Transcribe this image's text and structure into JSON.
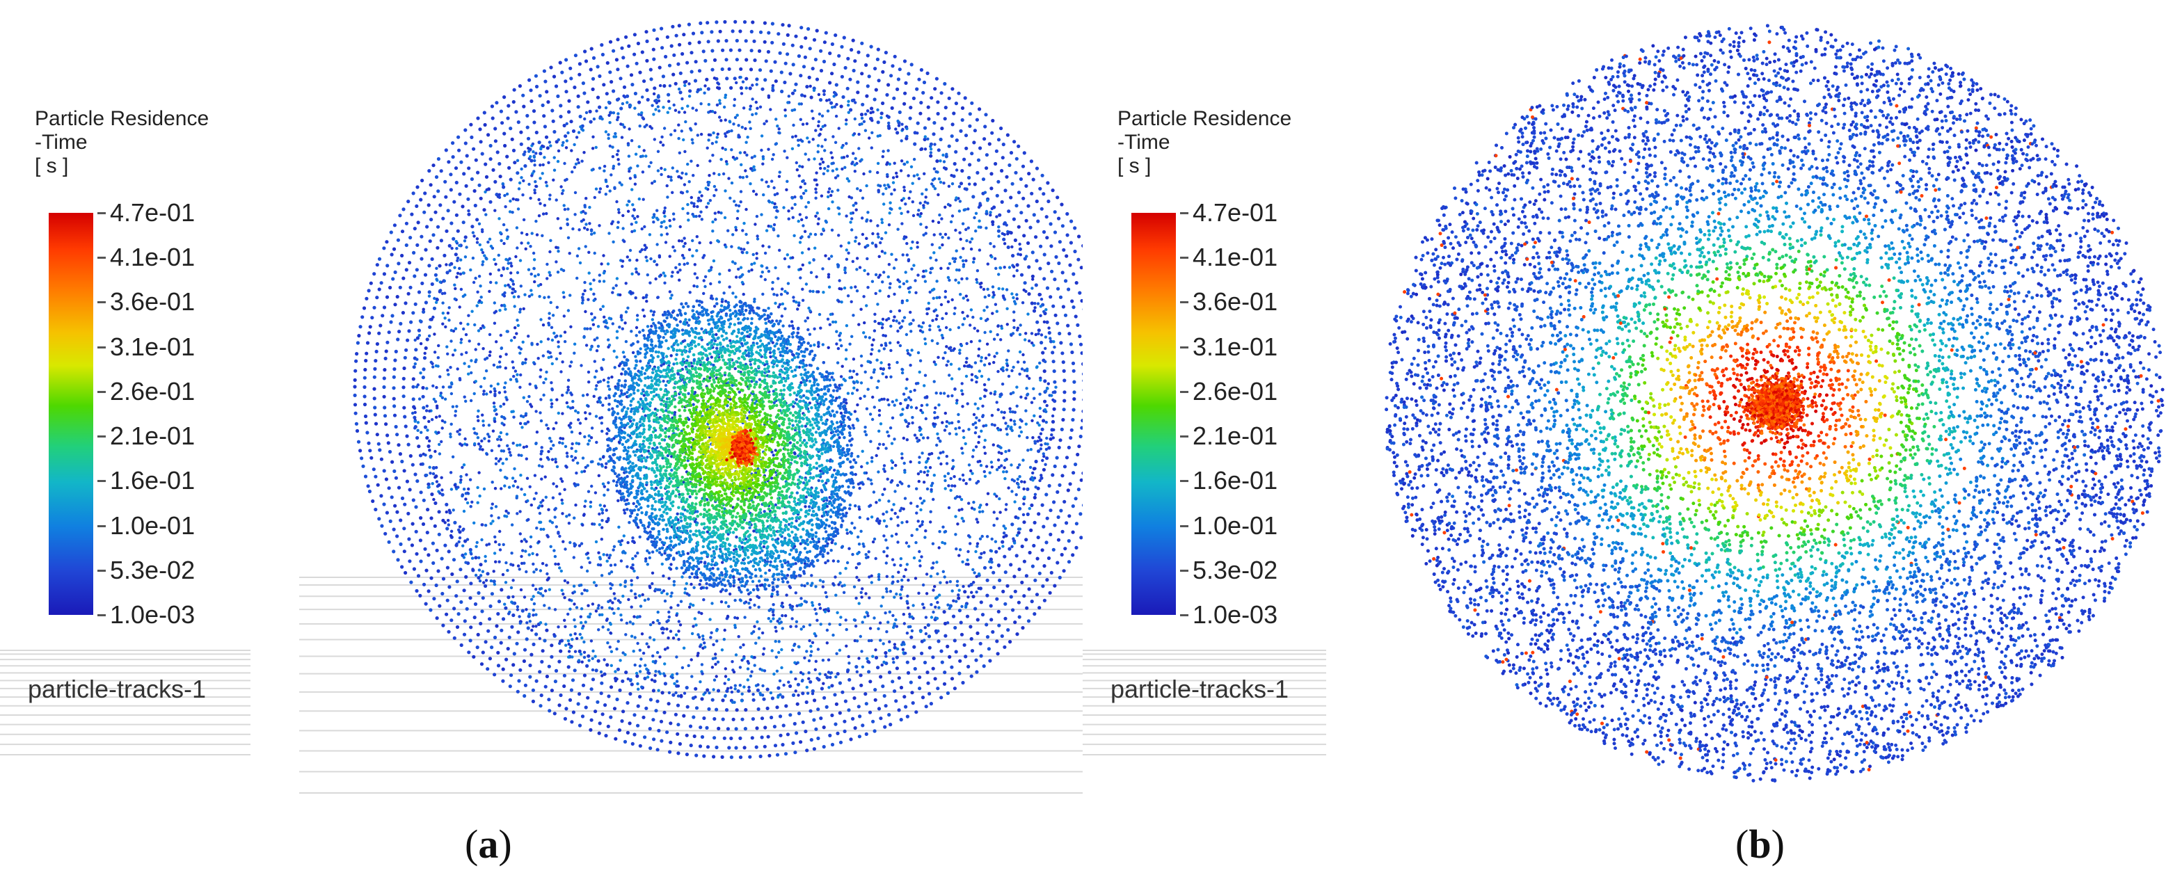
{
  "panels": [
    {
      "id": "a",
      "label": "a",
      "legend": {
        "title_line1": "Particle Residence",
        "title_line2": "-Time",
        "unit": "[ s ]",
        "ticks": [
          "4.7e-01",
          "4.1e-01",
          "3.6e-01",
          "3.1e-01",
          "2.6e-01",
          "2.1e-01",
          "1.6e-01",
          "1.0e-01",
          "5.3e-02",
          "1.0e-03"
        ],
        "caption": "particle-tracks-1"
      }
    },
    {
      "id": "b",
      "label": "b",
      "legend": {
        "title_line1": "Particle Residence",
        "title_line2": "-Time",
        "unit": "[ s ]",
        "ticks": [
          "4.7e-01",
          "4.1e-01",
          "3.6e-01",
          "3.1e-01",
          "2.6e-01",
          "2.1e-01",
          "1.6e-01",
          "1.0e-01",
          "5.3e-02",
          "1.0e-03"
        ],
        "caption": "particle-tracks-1"
      }
    }
  ],
  "colors": {
    "max": "#d40000",
    "mid": "#4ed800",
    "min": "#1a1ab8"
  }
}
